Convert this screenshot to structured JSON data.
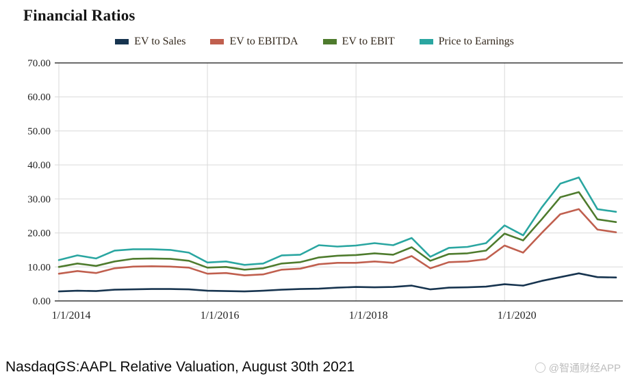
{
  "caption": {
    "text": "NasdaqGS:AAPL Relative Valuation, August 30th 2021",
    "watermark": "@智通财经APP"
  },
  "colors": {
    "grid_light": "#d9d9d9",
    "grid_dark": "#3a3a3a",
    "axis_text": "#1f1f1f"
  },
  "chart_data": {
    "type": "line",
    "title": "Financial Ratios",
    "xlabel": "",
    "ylabel": "",
    "ylim": [
      0,
      70
    ],
    "grid": true,
    "legend_position": "top",
    "x": [
      "1/1/2014",
      "4/1/2014",
      "7/1/2014",
      "10/1/2014",
      "1/1/2015",
      "4/1/2015",
      "7/1/2015",
      "10/1/2015",
      "1/1/2016",
      "4/1/2016",
      "7/1/2016",
      "10/1/2016",
      "1/1/2017",
      "4/1/2017",
      "7/1/2017",
      "10/1/2017",
      "1/1/2018",
      "4/1/2018",
      "7/1/2018",
      "10/1/2018",
      "1/1/2019",
      "4/1/2019",
      "7/1/2019",
      "10/1/2019",
      "1/1/2020",
      "4/1/2020",
      "7/1/2020",
      "10/1/2020",
      "1/1/2021",
      "4/1/2021",
      "7/1/2021"
    ],
    "x_tick_indices": [
      0,
      8,
      16,
      24
    ],
    "x_tick_labels": [
      "1/1/2014",
      "1/1/2016",
      "1/1/2018",
      "1/1/2020"
    ],
    "y_ticks": [
      0,
      10,
      20,
      30,
      40,
      50,
      60,
      70
    ],
    "y_tick_labels": [
      "0.00",
      "10.00",
      "20.00",
      "30.00",
      "40.00",
      "50.00",
      "60.00",
      "70.00"
    ],
    "series": [
      {
        "name": "EV to Sales",
        "color": "#17344f",
        "values": [
          2.8,
          3.0,
          2.9,
          3.3,
          3.4,
          3.5,
          3.5,
          3.4,
          3.0,
          2.9,
          2.8,
          3.0,
          3.3,
          3.5,
          3.6,
          3.9,
          4.1,
          4.0,
          4.1,
          4.5,
          3.4,
          3.9,
          4.0,
          4.2,
          4.9,
          4.5,
          5.9,
          7.0,
          8.1,
          7.0,
          6.9
        ]
      },
      {
        "name": "EV to EBITDA",
        "color": "#c05f4e",
        "values": [
          8.0,
          8.8,
          8.2,
          9.6,
          10.1,
          10.2,
          10.1,
          9.8,
          8.0,
          8.2,
          7.5,
          7.8,
          9.2,
          9.5,
          10.8,
          11.2,
          11.2,
          11.6,
          11.2,
          13.2,
          9.6,
          11.4,
          11.6,
          12.3,
          16.3,
          14.2,
          20.0,
          25.5,
          27.0,
          21.0,
          20.2
        ]
      },
      {
        "name": "EV to EBIT",
        "color": "#4e7b2d",
        "values": [
          10.0,
          11.0,
          10.3,
          11.6,
          12.4,
          12.5,
          12.4,
          11.8,
          9.8,
          10.0,
          9.2,
          9.6,
          11.0,
          11.4,
          12.8,
          13.3,
          13.5,
          14.0,
          13.6,
          15.8,
          11.8,
          13.8,
          14.0,
          14.8,
          19.8,
          17.8,
          24.0,
          30.5,
          32.0,
          24.0,
          23.2
        ]
      },
      {
        "name": "Price to Earnings",
        "color": "#2aa6a1",
        "values": [
          12.0,
          13.4,
          12.5,
          14.8,
          15.2,
          15.2,
          15.0,
          14.2,
          11.3,
          11.6,
          10.6,
          11.0,
          13.4,
          13.6,
          16.4,
          16.0,
          16.3,
          17.0,
          16.4,
          18.5,
          13.0,
          15.6,
          15.9,
          17.0,
          22.2,
          19.3,
          27.5,
          34.5,
          36.3,
          27.0,
          26.2
        ]
      }
    ]
  }
}
